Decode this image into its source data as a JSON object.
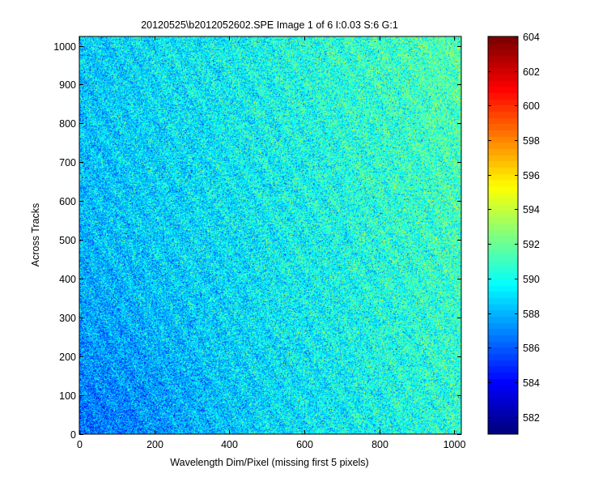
{
  "chart_data": {
    "type": "heatmap",
    "title": "20120525\\b2012052602.SPE  Image 1 of 6  I:0.03  S:6  G:1",
    "xlabel": "Wavelength Dim/Pixel (missing first 5 pixels)",
    "ylabel": "Across Tracks",
    "xlim": [
      0,
      1019
    ],
    "ylim": [
      0,
      1024
    ],
    "x_ticks": [
      0,
      200,
      400,
      600,
      800,
      1000
    ],
    "y_ticks": [
      0,
      100,
      200,
      300,
      400,
      500,
      600,
      700,
      800,
      900,
      1000
    ],
    "grid": false,
    "colormap": "jet",
    "colorbar": {
      "min": 581,
      "max": 604,
      "ticks": [
        582,
        584,
        586,
        588,
        590,
        592,
        594,
        596,
        598,
        600,
        602,
        604
      ]
    },
    "value_field": {
      "description_values": "noisy intensity field, lowest near bottom-left, highest near right edge",
      "base_value": 587.6,
      "x_gradient_per_1000px": 2.8,
      "y_gradient_per_1000px": 1.0,
      "noise_amplitude": 3.2
    },
    "colors": {
      "jet_0": "#00008f",
      "jet_1": "#0000ff",
      "jet_2": "#00ffff",
      "jet_3": "#ffff00",
      "jet_4": "#ff0000",
      "jet_5": "#800000"
    }
  }
}
